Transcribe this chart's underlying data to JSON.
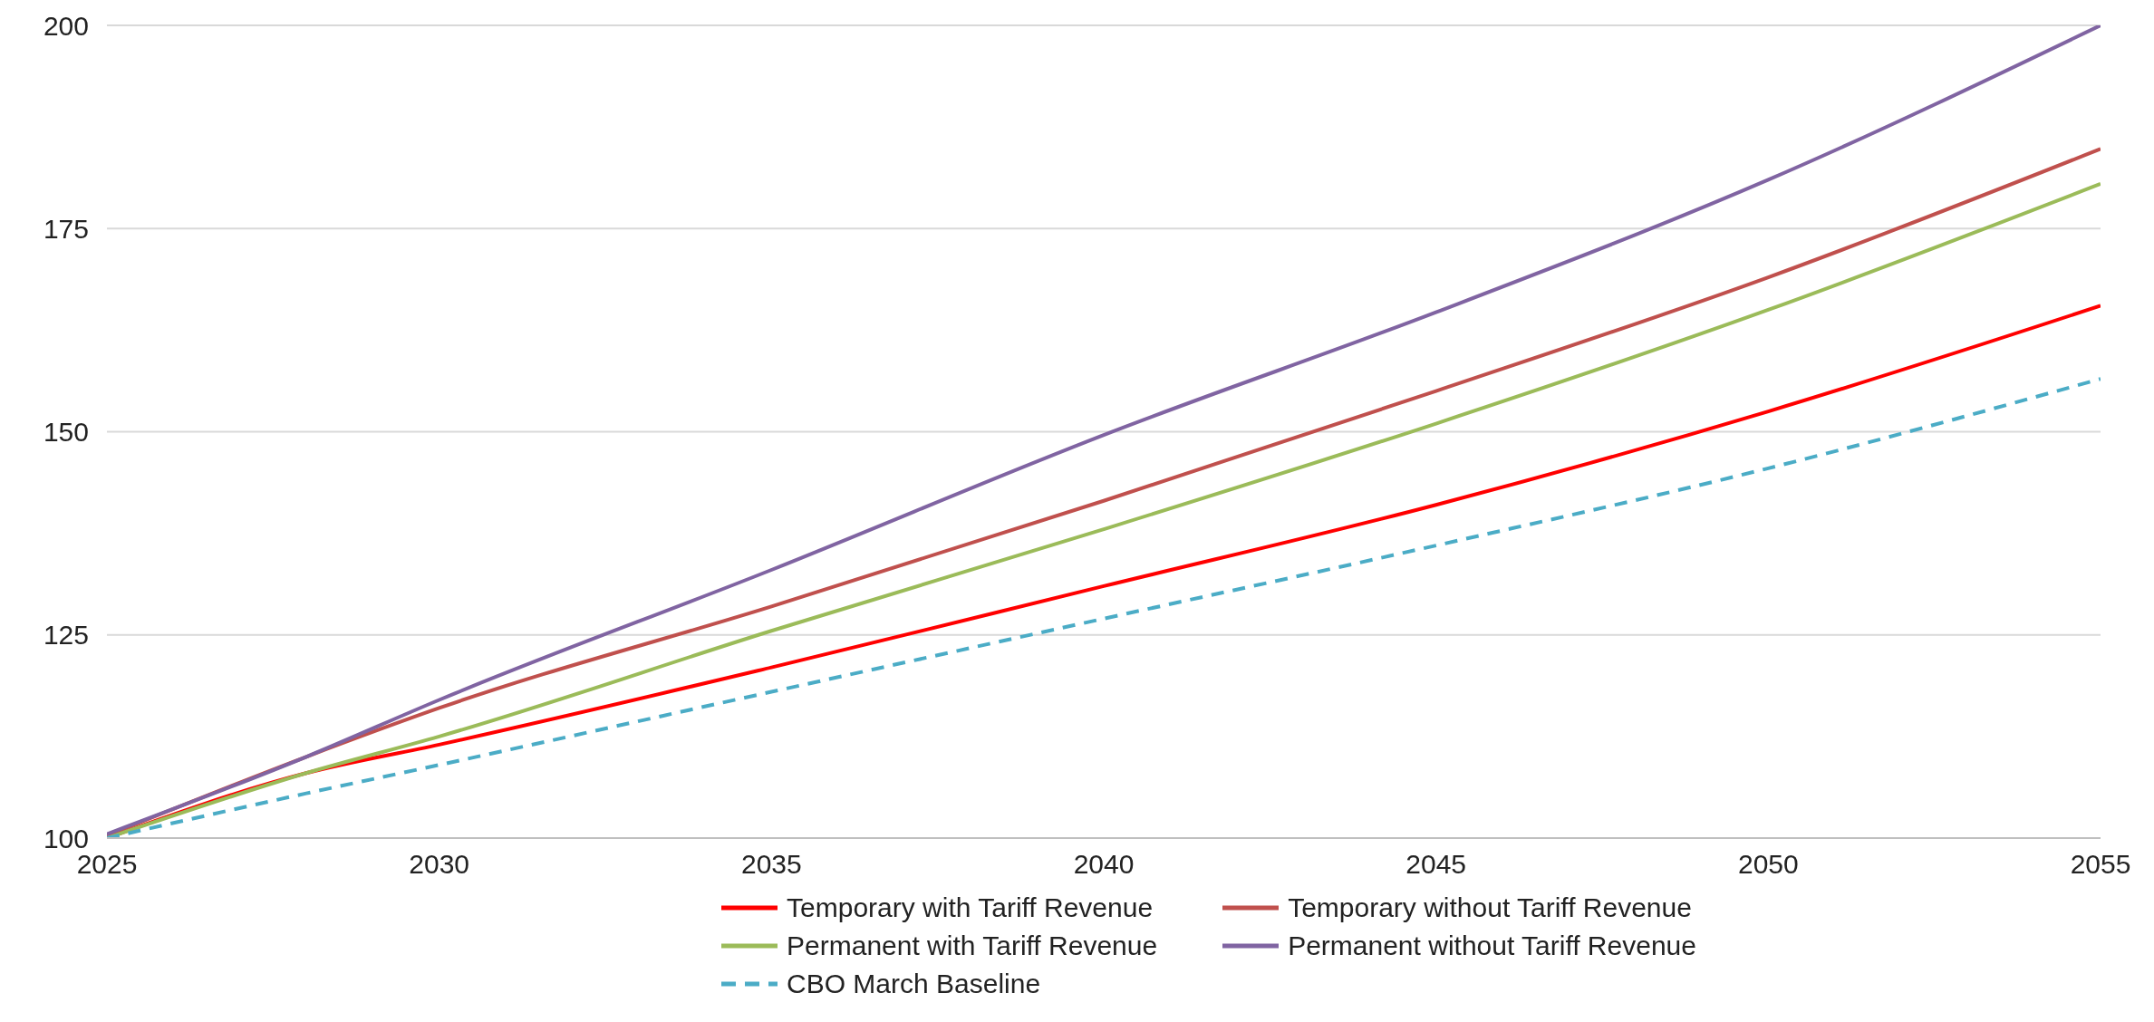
{
  "chart_data": {
    "type": "line",
    "x": [
      2025,
      2028,
      2030,
      2035,
      2040,
      2045,
      2050,
      2055
    ],
    "series": [
      {
        "name": "Temporary with Tariff Revenue",
        "color": "#ff0000",
        "values": [
          100,
          108,
          111.5,
          121,
          131,
          141,
          152.5,
          165.5
        ]
      },
      {
        "name": "Temporary without Tariff Revenue",
        "color": "#c0504d",
        "values": [
          100.3,
          110,
          116,
          128.5,
          141.5,
          155,
          169,
          184.8
        ]
      },
      {
        "name": "Permanent with Tariff Revenue",
        "color": "#9bbb59",
        "values": [
          100,
          108,
          112.5,
          125.5,
          138,
          151,
          165,
          180.5
        ]
      },
      {
        "name": "Permanent without Tariff Revenue",
        "color": "#8064a2",
        "values": [
          100.5,
          110,
          117,
          133,
          149.6,
          164.7,
          181,
          200
        ]
      },
      {
        "name": "CBO March Baseline",
        "color": "#4bacc6",
        "values": [
          100,
          105.5,
          109,
          118,
          127,
          136,
          145.5,
          156.5
        ],
        "line_style": "dashed"
      }
    ],
    "xlim": [
      2025,
      2055
    ],
    "xticks": [
      2025,
      2030,
      2035,
      2040,
      2045,
      2050,
      2055
    ],
    "ylim": [
      100,
      200
    ],
    "yticks": [
      100,
      125,
      150,
      175,
      200
    ],
    "grid": "y",
    "legend": "bottom",
    "marker": "none",
    "line_style": "solid"
  }
}
